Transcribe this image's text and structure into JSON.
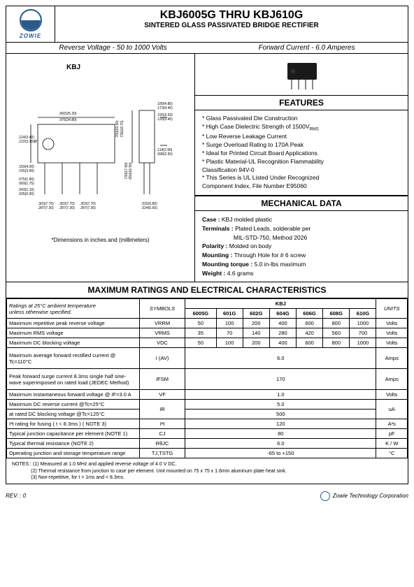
{
  "logo": {
    "brand": "ZOWIE"
  },
  "header": {
    "title": "KBJ6005G  THRU  KBJ610G",
    "subtitle": "SINTERED GLASS PASSIVATED BRIDGE  RECTIFIER",
    "spec_left": "Reverse Voltage - 50 to 1000 Volts",
    "spec_right": "Forward Current - 6.0 Amperes"
  },
  "diagram": {
    "label": "KBJ",
    "note": "*Dimensions in inches and (millimeters)"
  },
  "features": {
    "heading": "FEATURES",
    "items": [
      "*  Glass Passivated Die Construction",
      "*  High Case Dielectric Strength of 1500V",
      "*  Low Reverse Leakage Current",
      "*  Surge Overload Rating to 170A Peak",
      "*  Ideal for Printed Circuit Board Applications",
      "*  Plastic Material-UL Recognition Flammability",
      "   Classification 94V-0",
      "*  This Series is UL Listed Under Recognized",
      "   Component Index, File Number E95060"
    ],
    "rms_sub": "RMS"
  },
  "mechanical": {
    "heading": "MECHANICAL DATA",
    "case_label": "Case :",
    "case_val": " KBJ molded plastic",
    "term_label": "Terminals :",
    "term_val": " Plated Leads, solderable per",
    "term_val2": "                   MIL-STD-750, Method 2026",
    "pol_label": "Polarity :",
    "pol_val": " Molded on body",
    "mount_label": "Mounting :",
    "mount_val": " Through Hole for # 6 screw",
    "torque_label": "Mounting torque :",
    "torque_val": " 5.0 in-lbs maximum",
    "weight_label": "Weight :",
    "weight_val": " 4.6 grams"
  },
  "ratings": {
    "heading": "MAXIMUM RATINGS AND ELECTRICAL CHARACTERISTICS",
    "note_top1": "Ratings at 25°C ambient temperature",
    "note_top2": "unless otherwise specified.",
    "symbols": "SYMBOLS",
    "group": "KBJ",
    "units": "UNITS",
    "cols": [
      "6005G",
      "601G",
      "602G",
      "604G",
      "606G",
      "608G",
      "610G"
    ],
    "rows": [
      {
        "desc": "Maximum repetitive peak reverse voltage",
        "sym": "VRRM",
        "vals": [
          "50",
          "100",
          "200",
          "400",
          "600",
          "800",
          "1000"
        ],
        "unit": "Volts"
      },
      {
        "desc": "Maximum RMS voltage",
        "sym": "VRMS",
        "vals": [
          "35",
          "70",
          "140",
          "280",
          "420",
          "560",
          "700"
        ],
        "unit": "Volts"
      },
      {
        "desc": "Maximum DC blocking voltage",
        "sym": "VDC",
        "vals": [
          "50",
          "100",
          "200",
          "400",
          "600",
          "800",
          "1000"
        ],
        "unit": "Volts"
      },
      {
        "desc": "Maximum average forward rectified current @ Tc=110°C",
        "sym": "I (AV)",
        "span": "6.0",
        "unit": "Amps",
        "tall": true
      },
      {
        "desc": "Peak forward surge current 8.3ms single half sine-wave superimposed on rated load (JEDEC Method)",
        "sym": "IFSM",
        "span": "170",
        "unit": "Amps",
        "tall": true
      },
      {
        "desc": "Maximum instantaneous forward voltage @ IF=3.0 A",
        "sym": "VF",
        "span": "1.0",
        "unit": "Volts"
      },
      {
        "desc": "Maximum DC reverse current            @Tc=25°C",
        "sym": "",
        "span": "5.0",
        "unit": ""
      },
      {
        "desc": "at rated DC blocking voltage              @Tc=125°C",
        "sym": "IR",
        "span": "500",
        "unit": "uA",
        "merge_above": true
      },
      {
        "desc": "I²t rating for fusing ( t < 8.3ms ) ( NOTE 3)",
        "sym": "I²t",
        "span": "120",
        "unit": "A²s"
      },
      {
        "desc": "Typical junction capacitance  per element (NOTE 1)",
        "sym": "CJ",
        "span": "80",
        "unit": "pF"
      },
      {
        "desc": "Typical thermal resistance (NOTE 2)",
        "sym": "RθJC",
        "span": "6.0",
        "unit": "K / W"
      },
      {
        "desc": "Operating junction and storage temperature range",
        "sym": "TJ,TSTG",
        "span": "-65 to +150",
        "unit": "°C"
      }
    ]
  },
  "notes": {
    "heading": "NOTES :",
    "n1": "(1) Measured at 1.0 MHz and applied reverse voltage of 4.0 V DC.",
    "n2": "(2) Thermal resistance from junction to case per element. Unit mounted on 75 x 75 x 1.6mm aluminum plate heat sink.",
    "n3": "(3) Non-repetitive, for t > 1ms and < 8.3ms."
  },
  "footer": {
    "rev": "REV. : 0",
    "company": "Zowie Technology Corporation"
  }
}
